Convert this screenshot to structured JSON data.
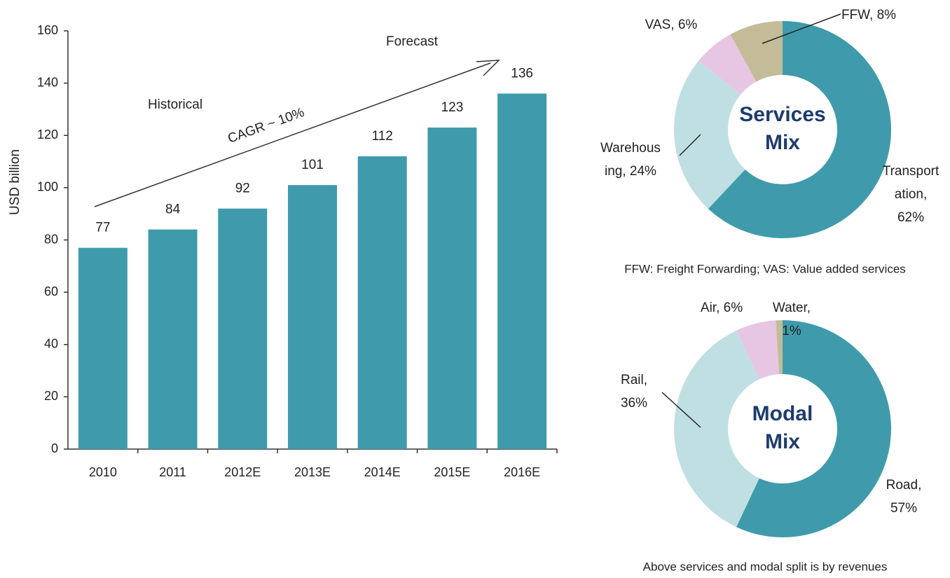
{
  "chart_data": [
    {
      "type": "bar",
      "y_label": "USD billion",
      "categories": [
        "2010",
        "2011",
        "2012E",
        "2013E",
        "2014E",
        "2015E",
        "2016E"
      ],
      "values": [
        77,
        84,
        92,
        101,
        112,
        123,
        136
      ],
      "color": "#3f9bab",
      "ylim": [
        0,
        160
      ],
      "yticks": [
        0,
        20,
        40,
        60,
        80,
        100,
        120,
        140,
        160
      ],
      "annotations": [
        "Historical",
        "Forecast",
        "CAGR ~ 10%"
      ]
    },
    {
      "type": "donut",
      "center_label": [
        "Services",
        "Mix"
      ],
      "values": [
        62,
        24,
        6,
        8
      ],
      "value_labels": [
        [
          "Transport",
          "ation,",
          "62%"
        ],
        [
          "Warehous",
          "ing, 24%"
        ],
        [
          "VAS, 6%"
        ],
        [
          "FFW, 8%"
        ]
      ],
      "colors": [
        "#3f9bab",
        "#c0dfe3",
        "#e6c6e3",
        "#c4bc98"
      ],
      "note": "FFW: Freight Forwarding; VAS: Value added services"
    },
    {
      "type": "donut",
      "center_label": [
        "Modal",
        "Mix"
      ],
      "values": [
        57,
        36,
        6,
        1
      ],
      "value_labels": [
        [
          "Road,",
          "57%"
        ],
        [
          "Rail,",
          "36%"
        ],
        [
          "Air, 6%"
        ],
        [
          "Water,",
          "1%"
        ]
      ],
      "colors": [
        "#3f9bab",
        "#c0dfe3",
        "#e6c6e3",
        "#c4bc98"
      ],
      "note": "Above services and modal split is by revenues"
    }
  ]
}
